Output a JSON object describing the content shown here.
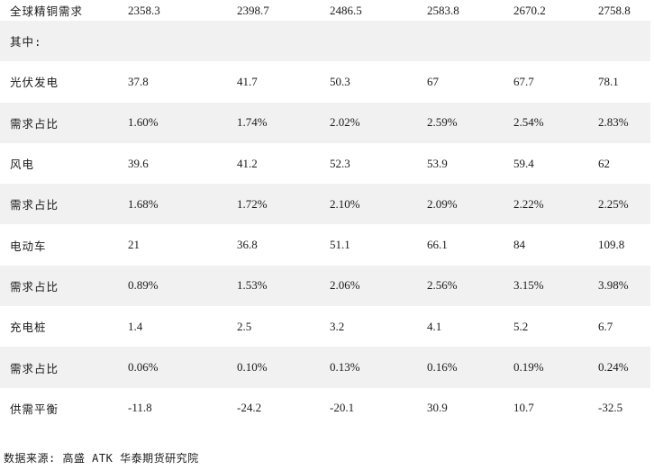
{
  "rows": [
    {
      "label": "全球精铜需求",
      "values": [
        "2358.3",
        "2398.7",
        "2486.5",
        "2583.8",
        "2670.2",
        "2758.8"
      ]
    },
    {
      "label": "其中:",
      "values": [
        "",
        "",
        "",
        "",
        "",
        ""
      ]
    },
    {
      "label": "光伏发电",
      "values": [
        "37.8",
        "41.7",
        "50.3",
        "67",
        "67.7",
        "78.1"
      ]
    },
    {
      "label": "需求占比",
      "values": [
        "1.60%",
        "1.74%",
        "2.02%",
        "2.59%",
        "2.54%",
        "2.83%"
      ]
    },
    {
      "label": "风电",
      "values": [
        "39.6",
        "41.2",
        "52.3",
        "53.9",
        "59.4",
        "62"
      ]
    },
    {
      "label": "需求占比",
      "values": [
        "1.68%",
        "1.72%",
        "2.10%",
        "2.09%",
        "2.22%",
        "2.25%"
      ]
    },
    {
      "label": "电动车",
      "values": [
        "21",
        "36.8",
        "51.1",
        "66.1",
        "84",
        "109.8"
      ]
    },
    {
      "label": "需求占比",
      "values": [
        "0.89%",
        "1.53%",
        "2.06%",
        "2.56%",
        "3.15%",
        "3.98%"
      ]
    },
    {
      "label": "充电桩",
      "values": [
        "1.4",
        "2.5",
        "3.2",
        "4.1",
        "5.2",
        "6.7"
      ]
    },
    {
      "label": "需求占比",
      "values": [
        "0.06%",
        "0.10%",
        "0.13%",
        "0.16%",
        "0.19%",
        "0.24%"
      ]
    },
    {
      "label": "供需平衡",
      "values": [
        "-11.8",
        "-24.2",
        "-20.1",
        "30.9",
        "10.7",
        "-32.5"
      ]
    }
  ],
  "source": "数据来源:  高盛 ATK 华泰期货研究院",
  "colors": {
    "shaded_row": "#f1f1f1",
    "text": "#1a1a1a"
  }
}
